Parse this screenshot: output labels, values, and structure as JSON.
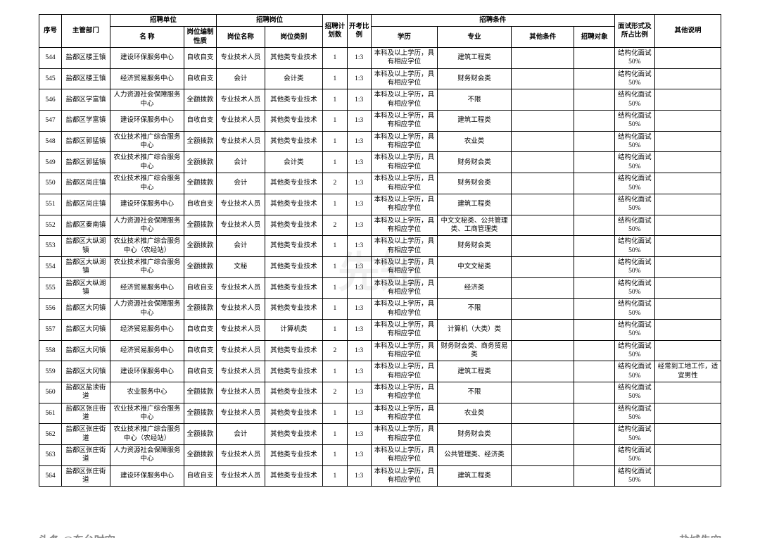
{
  "headers": {
    "seq": "序号",
    "super_dept": "主管部门",
    "recruit_unit": "招聘单位",
    "unit_name": "名 称",
    "unit_nature": "岗位编制性质",
    "recruit_position": "招聘岗位",
    "position_name": "岗位名称",
    "position_type": "岗位类别",
    "plan_count": "招聘计划数",
    "exam_ratio": "开考比例",
    "recruit_cond": "招聘条件",
    "education": "学历",
    "major": "专业",
    "other_cond": "其他条件",
    "recruit_target": "招聘对象",
    "interview": "面试形式及所占比例",
    "remark": "其他说明"
  },
  "rows": [
    {
      "seq": "544",
      "dept": "盐都区楼王镇",
      "unit": "建设环保服务中心",
      "nature": "自收自支",
      "posname": "专业技术人员",
      "postype": "其他类专业技术",
      "count": "1",
      "ratio": "1:3",
      "edu": "本科及以上学历，具有相应学位",
      "major": "建筑工程类",
      "other": "",
      "target": "",
      "interview": "结构化面试50%",
      "remark": ""
    },
    {
      "seq": "545",
      "dept": "盐都区楼王镇",
      "unit": "经济贸易服务中心",
      "nature": "自收自支",
      "posname": "会计",
      "postype": "会计类",
      "count": "1",
      "ratio": "1:3",
      "edu": "本科及以上学历，具有相应学位",
      "major": "财务财会类",
      "other": "",
      "target": "",
      "interview": "结构化面试50%",
      "remark": ""
    },
    {
      "seq": "546",
      "dept": "盐都区学富镇",
      "unit": "人力资源社会保障服务中心",
      "nature": "全额拨款",
      "posname": "专业技术人员",
      "postype": "其他类专业技术",
      "count": "1",
      "ratio": "1:3",
      "edu": "本科及以上学历，具有相应学位",
      "major": "不限",
      "other": "",
      "target": "",
      "interview": "结构化面试50%",
      "remark": ""
    },
    {
      "seq": "547",
      "dept": "盐都区学富镇",
      "unit": "建设环保服务中心",
      "nature": "自收自支",
      "posname": "专业技术人员",
      "postype": "其他类专业技术",
      "count": "1",
      "ratio": "1:3",
      "edu": "本科及以上学历，具有相应学位",
      "major": "建筑工程类",
      "other": "",
      "target": "",
      "interview": "结构化面试50%",
      "remark": ""
    },
    {
      "seq": "548",
      "dept": "盐都区郭猛镇",
      "unit": "农业技术推广综合服务中心",
      "nature": "全额拨款",
      "posname": "专业技术人员",
      "postype": "其他类专业技术",
      "count": "1",
      "ratio": "1:3",
      "edu": "本科及以上学历，具有相应学位",
      "major": "农业类",
      "other": "",
      "target": "",
      "interview": "结构化面试50%",
      "remark": ""
    },
    {
      "seq": "549",
      "dept": "盐都区郭猛镇",
      "unit": "农业技术推广综合服务中心",
      "nature": "全额拨款",
      "posname": "会计",
      "postype": "会计类",
      "count": "1",
      "ratio": "1:3",
      "edu": "本科及以上学历，具有相应学位",
      "major": "财务财会类",
      "other": "",
      "target": "",
      "interview": "结构化面试50%",
      "remark": ""
    },
    {
      "seq": "550",
      "dept": "盐都区尚庄镇",
      "unit": "农业技术推广综合服务中心",
      "nature": "全额拨款",
      "posname": "会计",
      "postype": "其他类专业技术",
      "count": "2",
      "ratio": "1:3",
      "edu": "本科及以上学历，具有相应学位",
      "major": "财务财会类",
      "other": "",
      "target": "",
      "interview": "结构化面试50%",
      "remark": ""
    },
    {
      "seq": "551",
      "dept": "盐都区尚庄镇",
      "unit": "建设环保服务中心",
      "nature": "自收自支",
      "posname": "专业技术人员",
      "postype": "其他类专业技术",
      "count": "1",
      "ratio": "1:3",
      "edu": "本科及以上学历，具有相应学位",
      "major": "建筑工程类",
      "other": "",
      "target": "",
      "interview": "结构化面试50%",
      "remark": ""
    },
    {
      "seq": "552",
      "dept": "盐都区秦南镇",
      "unit": "人力资源社会保障服务中心",
      "nature": "全额拨款",
      "posname": "专业技术人员",
      "postype": "其他类专业技术",
      "count": "2",
      "ratio": "1:3",
      "edu": "本科及以上学历，具有相应学位",
      "major": "中文文秘类、公共管理类、工商管理类",
      "other": "",
      "target": "",
      "interview": "结构化面试50%",
      "remark": ""
    },
    {
      "seq": "553",
      "dept": "盐都区大纵湖镇",
      "unit": "农业技术推广综合服务中心（农经站）",
      "nature": "全额拨款",
      "posname": "会计",
      "postype": "其他类专业技术",
      "count": "1",
      "ratio": "1:3",
      "edu": "本科及以上学历，具有相应学位",
      "major": "财务财会类",
      "other": "",
      "target": "",
      "interview": "结构化面试50%",
      "remark": ""
    },
    {
      "seq": "554",
      "dept": "盐都区大纵湖镇",
      "unit": "农业技术推广综合服务中心",
      "nature": "全额拨款",
      "posname": "文秘",
      "postype": "其他类专业技术",
      "count": "1",
      "ratio": "1:3",
      "edu": "本科及以上学历，具有相应学位",
      "major": "中文文秘类",
      "other": "",
      "target": "",
      "interview": "结构化面试50%",
      "remark": ""
    },
    {
      "seq": "555",
      "dept": "盐都区大纵湖镇",
      "unit": "经济贸易服务中心",
      "nature": "自收自支",
      "posname": "专业技术人员",
      "postype": "其他类专业技术",
      "count": "1",
      "ratio": "1:3",
      "edu": "本科及以上学历，具有相应学位",
      "major": "经济类",
      "other": "",
      "target": "",
      "interview": "结构化面试50%",
      "remark": ""
    },
    {
      "seq": "556",
      "dept": "盐都区大冈镇",
      "unit": "人力资源社会保障服务中心",
      "nature": "全额拨款",
      "posname": "专业技术人员",
      "postype": "其他类专业技术",
      "count": "1",
      "ratio": "1:3",
      "edu": "本科及以上学历，具有相应学位",
      "major": "不限",
      "other": "",
      "target": "",
      "interview": "结构化面试50%",
      "remark": ""
    },
    {
      "seq": "557",
      "dept": "盐都区大冈镇",
      "unit": "经济贸易服务中心",
      "nature": "自收自支",
      "posname": "专业技术人员",
      "postype": "计算机类",
      "count": "1",
      "ratio": "1:3",
      "edu": "本科及以上学历，具有相应学位",
      "major": "计算机（大类）类",
      "other": "",
      "target": "",
      "interview": "结构化面试50%",
      "remark": ""
    },
    {
      "seq": "558",
      "dept": "盐都区大冈镇",
      "unit": "经济贸易服务中心",
      "nature": "自收自支",
      "posname": "专业技术人员",
      "postype": "其他类专业技术",
      "count": "2",
      "ratio": "1:3",
      "edu": "本科及以上学历，具有相应学位",
      "major": "财务财会类、商务贸易类",
      "other": "",
      "target": "",
      "interview": "结构化面试50%",
      "remark": ""
    },
    {
      "seq": "559",
      "dept": "盐都区大冈镇",
      "unit": "建设环保服务中心",
      "nature": "自收自支",
      "posname": "专业技术人员",
      "postype": "其他类专业技术",
      "count": "1",
      "ratio": "1:3",
      "edu": "本科及以上学历，具有相应学位",
      "major": "建筑工程类",
      "other": "",
      "target": "",
      "interview": "结构化面试50%",
      "remark": "经常到工地工作，适宜男性"
    },
    {
      "seq": "560",
      "dept": "盐都区盐渎街道",
      "unit": "农业服务中心",
      "nature": "全额拨款",
      "posname": "专业技术人员",
      "postype": "其他类专业技术",
      "count": "2",
      "ratio": "1:3",
      "edu": "本科及以上学历，具有相应学位",
      "major": "不限",
      "other": "",
      "target": "",
      "interview": "结构化面试50%",
      "remark": ""
    },
    {
      "seq": "561",
      "dept": "盐都区张庄街道",
      "unit": "农业技术推广综合服务中心",
      "nature": "全额拨款",
      "posname": "专业技术人员",
      "postype": "其他类专业技术",
      "count": "1",
      "ratio": "1:3",
      "edu": "本科及以上学历，具有相应学位",
      "major": "农业类",
      "other": "",
      "target": "",
      "interview": "结构化面试50%",
      "remark": ""
    },
    {
      "seq": "562",
      "dept": "盐都区张庄街道",
      "unit": "农业技术推广综合服务中心（农经站）",
      "nature": "全额拨款",
      "posname": "会计",
      "postype": "其他类专业技术",
      "count": "1",
      "ratio": "1:3",
      "edu": "本科及以上学历，具有相应学位",
      "major": "财务财会类",
      "other": "",
      "target": "",
      "interview": "结构化面试50%",
      "remark": ""
    },
    {
      "seq": "563",
      "dept": "盐都区张庄街道",
      "unit": "人力资源社会保障服务中心",
      "nature": "全额拨款",
      "posname": "专业技术人员",
      "postype": "其他类专业技术",
      "count": "1",
      "ratio": "1:3",
      "edu": "本科及以上学历，具有相应学位",
      "major": "公共管理类、经济类",
      "other": "",
      "target": "",
      "interview": "结构化面试50%",
      "remark": ""
    },
    {
      "seq": "564",
      "dept": "盐都区张庄街道",
      "unit": "建设环保服务中心",
      "nature": "自收自支",
      "posname": "专业技术人员",
      "postype": "其他类专业技术",
      "count": "1",
      "ratio": "1:3",
      "edu": "本科及以上学历，具有相应学位",
      "major": "建筑工程类",
      "other": "",
      "target": "",
      "interview": "结构化面试50%",
      "remark": ""
    }
  ],
  "watermark": "先知",
  "footer_left": "头条 @东台时空",
  "footer_right": "盐城先空"
}
